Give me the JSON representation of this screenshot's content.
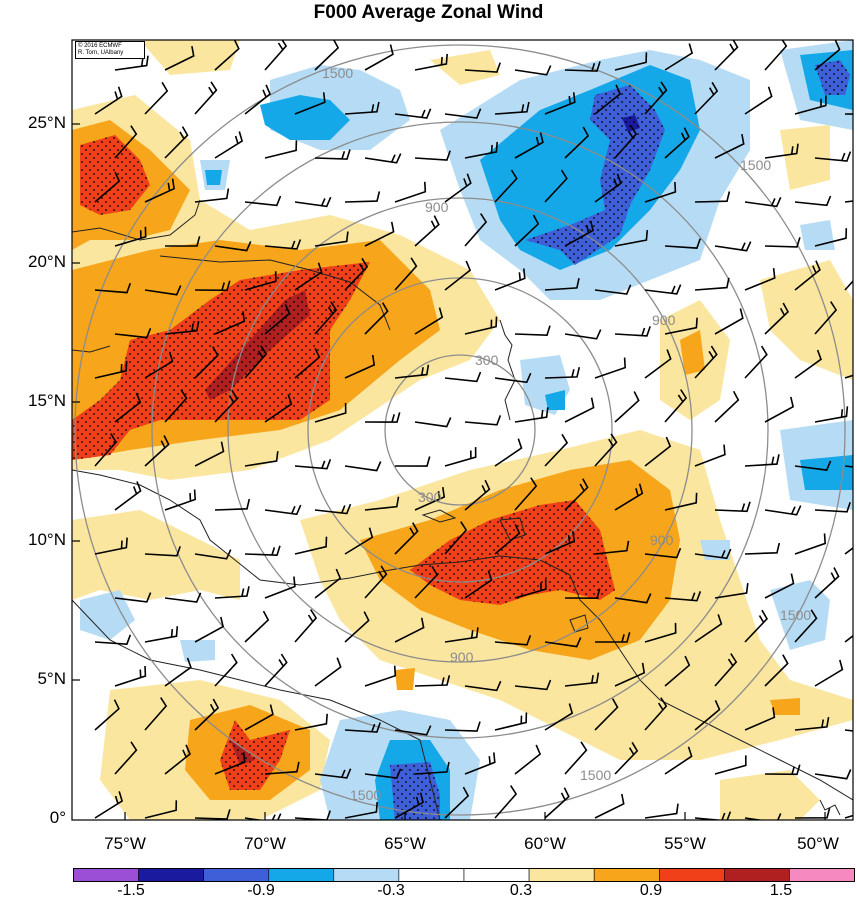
{
  "title": "F000 Average Zonal Wind",
  "credit": {
    "line1": "© 2016 ECMWF",
    "line2": "R. Torn, UAlbany"
  },
  "lat_labels": [
    "25°N",
    "20°N",
    "15°N",
    "10°N",
    "5°N",
    "0°"
  ],
  "lon_labels": [
    "75°W",
    "70°W",
    "65°W",
    "60°W",
    "55°W",
    "50°W"
  ],
  "range_ring_labels": [
    "300",
    "300",
    "900",
    "900",
    "900",
    "900",
    "1500",
    "1500",
    "1500",
    "1500",
    "1500"
  ],
  "colorbar": {
    "labels": [
      "-1.5",
      "-0.9",
      "-0.3",
      "0.3",
      "0.9",
      "1.5"
    ],
    "colors": [
      "#9b4fd6",
      "#1a1a9e",
      "#3f5fd8",
      "#14a8e8",
      "#b6dcf5",
      "#ffffff",
      "#ffffff",
      "#fbe6a0",
      "#f7a51a",
      "#f0401a",
      "#b02020",
      "#f58ac0"
    ]
  },
  "map_colors": {
    "ocean_white": "#ffffff",
    "light_yellow": "#fbe6a0",
    "orange": "#f7a51a",
    "red_orange": "#f0401a",
    "dark_red": "#b02020",
    "light_blue": "#b6dcf5",
    "blue": "#14a8e8",
    "dark_blue": "#3f5fd8",
    "navy": "#1a1a9e",
    "ring_gray": "#8c8c8c"
  }
}
